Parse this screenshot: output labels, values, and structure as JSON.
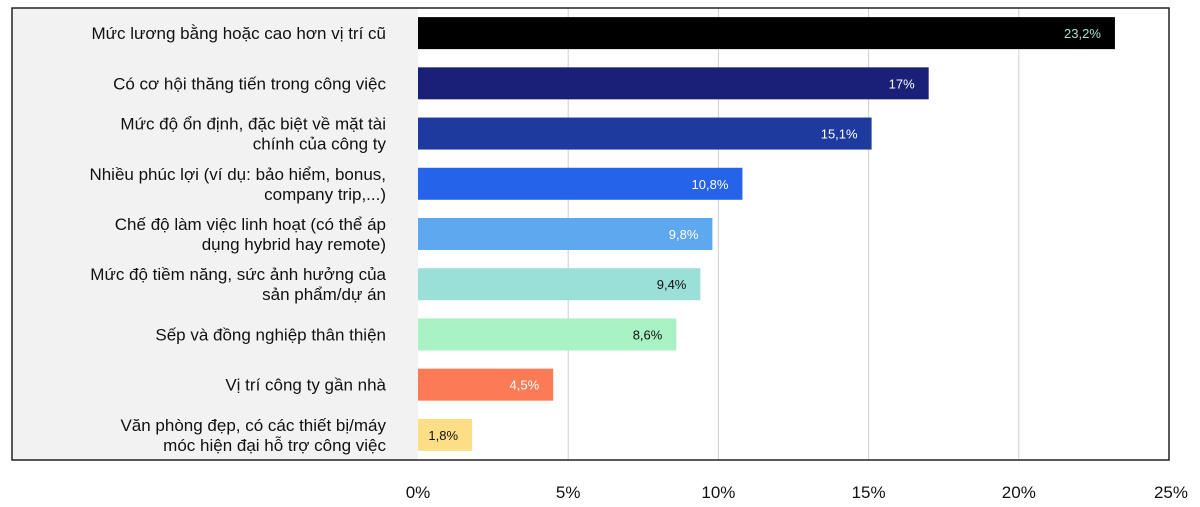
{
  "chart_data": {
    "type": "bar",
    "orientation": "horizontal",
    "categories": [
      [
        "Mức lương bằng hoặc cao hơn vị trí cũ"
      ],
      [
        "Có cơ hội thăng tiến trong công việc"
      ],
      [
        "Mức độ ổn định, đặc biệt về mặt tài",
        "chính của công ty"
      ],
      [
        "Nhiều phúc lợi (ví dụ: bảo hiểm, bonus,",
        "company trip,...)"
      ],
      [
        "Chế độ làm việc linh hoạt (có thể áp",
        "dụng hybrid hay remote)"
      ],
      [
        "Mức độ tiềm năng, sức ảnh hưởng của",
        "sản phẩm/dự án"
      ],
      [
        "Sếp và đồng nghiệp thân thiện"
      ],
      [
        "Vị trí công ty gần nhà"
      ],
      [
        "Văn phòng đẹp, có các thiết bị/máy",
        "móc hiện đại hỗ trợ công việc"
      ]
    ],
    "values": [
      23.2,
      17,
      15.1,
      10.8,
      9.8,
      9.4,
      8.6,
      4.5,
      1.8
    ],
    "value_labels": [
      "23,2%",
      "17%",
      "15,1%",
      "10,8%",
      "9,8%",
      "9,4%",
      "8,6%",
      "4,5%",
      "1,8%"
    ],
    "bar_colors": [
      "#000000",
      "#1a1f78",
      "#1e3a9e",
      "#2563eb",
      "#5ea8f0",
      "#9be0d8",
      "#a8f2c4",
      "#fb7b57",
      "#fcde87"
    ],
    "label_colors": [
      "#a8e0d4",
      "#ffffff",
      "#ffffff",
      "#ffffff",
      "#ffffff",
      "#111111",
      "#111111",
      "#ffffff",
      "#111111"
    ],
    "x_ticks": [
      0,
      5,
      10,
      15,
      20,
      25
    ],
    "x_tick_labels": [
      "0%",
      "5%",
      "10%",
      "15%",
      "20%",
      "25%"
    ],
    "xlim": [
      0,
      25
    ],
    "grid": "vertical",
    "label_panel_color": "#f2f2f2",
    "title": "",
    "xlabel": "",
    "ylabel": ""
  }
}
